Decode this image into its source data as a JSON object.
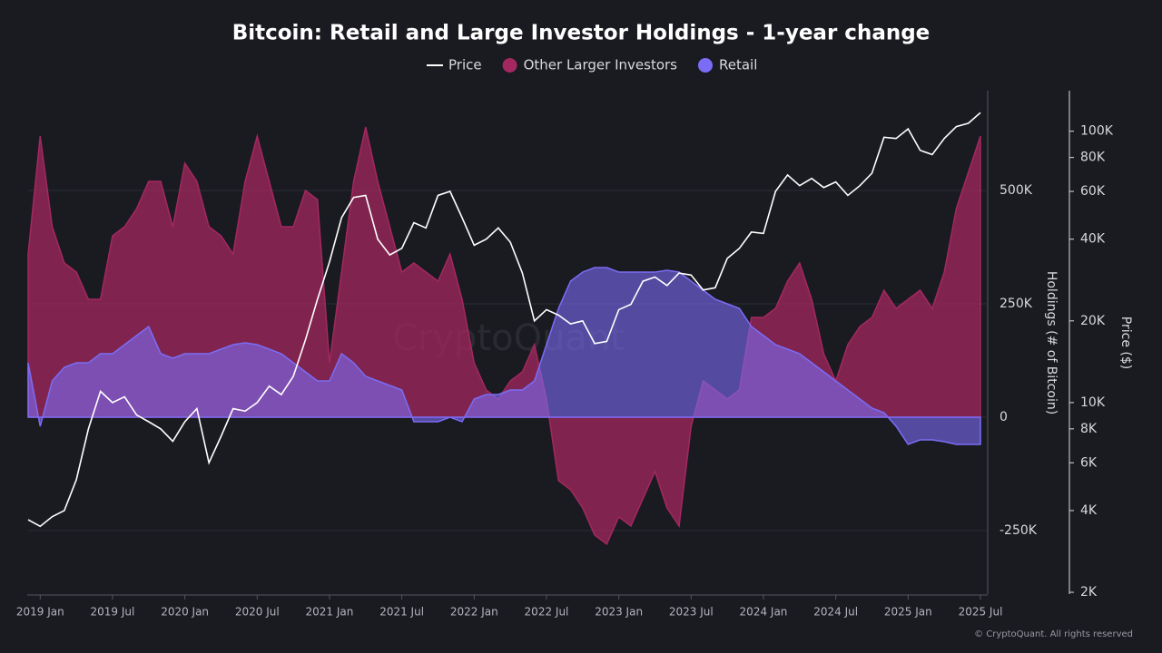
{
  "chart_data": {
    "type": "area",
    "title": "Bitcoin: Retail and Large Investor Holdings - 1-year change",
    "watermark": "CryptoQuant",
    "credit": "© CryptoQuant. All rights reserved",
    "ylabel": "Holdings (# of Bitcoin)",
    "y2label": "Price ($)",
    "x": [
      "2018-12",
      "2019-01",
      "2019-02",
      "2019-03",
      "2019-04",
      "2019-05",
      "2019-06",
      "2019-07",
      "2019-08",
      "2019-09",
      "2019-10",
      "2019-11",
      "2019-12",
      "2020-01",
      "2020-02",
      "2020-03",
      "2020-04",
      "2020-05",
      "2020-06",
      "2020-07",
      "2020-08",
      "2020-09",
      "2020-10",
      "2020-11",
      "2020-12",
      "2021-01",
      "2021-02",
      "2021-03",
      "2021-04",
      "2021-05",
      "2021-06",
      "2021-07",
      "2021-08",
      "2021-09",
      "2021-10",
      "2021-11",
      "2021-12",
      "2022-01",
      "2022-02",
      "2022-03",
      "2022-04",
      "2022-05",
      "2022-06",
      "2022-07",
      "2022-08",
      "2022-09",
      "2022-10",
      "2022-11",
      "2022-12",
      "2023-01",
      "2023-02",
      "2023-03",
      "2023-04",
      "2023-05",
      "2023-06",
      "2023-07",
      "2023-08",
      "2023-09",
      "2023-10",
      "2023-11",
      "2023-12",
      "2024-01",
      "2024-02",
      "2024-03",
      "2024-04",
      "2024-05",
      "2024-06",
      "2024-07",
      "2024-08",
      "2024-09",
      "2024-10",
      "2024-11",
      "2024-12",
      "2025-01",
      "2025-02",
      "2025-03",
      "2025-04",
      "2025-05",
      "2025-06",
      "2025-07"
    ],
    "xticks": [
      {
        "value": "2019-01",
        "label": "2019 Jan"
      },
      {
        "value": "2019-07",
        "label": "2019 Jul"
      },
      {
        "value": "2020-01",
        "label": "2020 Jan"
      },
      {
        "value": "2020-07",
        "label": "2020 Jul"
      },
      {
        "value": "2021-01",
        "label": "2021 Jan"
      },
      {
        "value": "2021-07",
        "label": "2021 Jul"
      },
      {
        "value": "2022-01",
        "label": "2022 Jan"
      },
      {
        "value": "2022-07",
        "label": "2022 Jul"
      },
      {
        "value": "2023-01",
        "label": "2023 Jan"
      },
      {
        "value": "2023-07",
        "label": "2023 Jul"
      },
      {
        "value": "2024-01",
        "label": "2024 Jan"
      },
      {
        "value": "2024-07",
        "label": "2024 Jul"
      },
      {
        "value": "2025-01",
        "label": "2025 Jan"
      },
      {
        "value": "2025-07",
        "label": "2025 Jul"
      }
    ],
    "ylim": [
      -390000,
      720000
    ],
    "yticks": [
      {
        "value": -250000,
        "label": "-250K"
      },
      0,
      {
        "value": 250000,
        "label": "250K"
      },
      {
        "value": 500000,
        "label": "500K"
      }
    ],
    "y2lim": [
      1970,
      141000
    ],
    "y2scale": "log",
    "y2ticks": [
      {
        "value": 2000,
        "label": "2K"
      },
      {
        "value": 4000,
        "label": "4K"
      },
      {
        "value": 6000,
        "label": "6K"
      },
      {
        "value": 8000,
        "label": "8K"
      },
      {
        "value": 10000,
        "label": "10K"
      },
      {
        "value": 20000,
        "label": "20K"
      },
      {
        "value": 40000,
        "label": "40K"
      },
      {
        "value": 60000,
        "label": "60K"
      },
      {
        "value": 80000,
        "label": "80K"
      },
      {
        "value": 100000,
        "label": "100K"
      }
    ],
    "grid": true,
    "series": [
      {
        "name": "Price",
        "color": "#ffffff",
        "axis": "y2",
        "kind": "line",
        "values": [
          3700,
          3500,
          3800,
          4000,
          5200,
          8000,
          11000,
          10000,
          10500,
          9000,
          8500,
          8000,
          7200,
          8500,
          9500,
          6000,
          7500,
          9500,
          9300,
          10000,
          11500,
          10700,
          12500,
          17000,
          24000,
          33000,
          48000,
          57000,
          58000,
          40000,
          35000,
          37000,
          46000,
          44000,
          58000,
          60000,
          48000,
          38000,
          40000,
          44000,
          39000,
          30000,
          20000,
          22000,
          21000,
          19500,
          20000,
          16500,
          16800,
          22000,
          23000,
          28000,
          29000,
          27000,
          30000,
          29500,
          26000,
          26500,
          34000,
          37000,
          42500,
          42000,
          60000,
          69000,
          63000,
          67000,
          62000,
          65000,
          58000,
          63000,
          70000,
          95000,
          94000,
          102000,
          85000,
          82000,
          94000,
          104000,
          107000,
          117000
        ]
      },
      {
        "name": "Other Larger Investors",
        "color": "#a3285f",
        "kind": "area",
        "values": [
          360000,
          620000,
          420000,
          340000,
          320000,
          260000,
          260000,
          400000,
          420000,
          460000,
          520000,
          520000,
          420000,
          560000,
          520000,
          420000,
          400000,
          360000,
          520000,
          620000,
          520000,
          420000,
          420000,
          500000,
          480000,
          120000,
          320000,
          520000,
          640000,
          520000,
          420000,
          320000,
          340000,
          320000,
          300000,
          360000,
          260000,
          120000,
          60000,
          40000,
          80000,
          100000,
          160000,
          40000,
          -140000,
          -160000,
          -200000,
          -260000,
          -280000,
          -220000,
          -240000,
          -180000,
          -120000,
          -200000,
          -240000,
          -20000,
          80000,
          60000,
          40000,
          60000,
          220000,
          220000,
          240000,
          300000,
          340000,
          260000,
          140000,
          80000,
          160000,
          200000,
          220000,
          280000,
          240000,
          260000,
          280000,
          240000,
          320000,
          460000,
          540000,
          620000
        ]
      },
      {
        "name": "Retail",
        "color": "#7b6cf5",
        "kind": "area",
        "values": [
          120000,
          -20000,
          80000,
          110000,
          120000,
          120000,
          140000,
          140000,
          160000,
          180000,
          200000,
          140000,
          130000,
          140000,
          140000,
          140000,
          150000,
          160000,
          164000,
          160000,
          150000,
          140000,
          120000,
          100000,
          80000,
          80000,
          140000,
          120000,
          90000,
          80000,
          70000,
          60000,
          -10000,
          -10000,
          -10000,
          0,
          -10000,
          40000,
          50000,
          50000,
          60000,
          60000,
          80000,
          160000,
          240000,
          300000,
          320000,
          330000,
          330000,
          320000,
          320000,
          320000,
          320000,
          324000,
          320000,
          300000,
          280000,
          260000,
          250000,
          240000,
          200000,
          180000,
          160000,
          150000,
          140000,
          120000,
          100000,
          80000,
          60000,
          40000,
          20000,
          10000,
          -20000,
          -60000,
          -50000,
          -50000,
          -54000,
          -60000,
          -60000,
          -60000
        ]
      }
    ]
  }
}
